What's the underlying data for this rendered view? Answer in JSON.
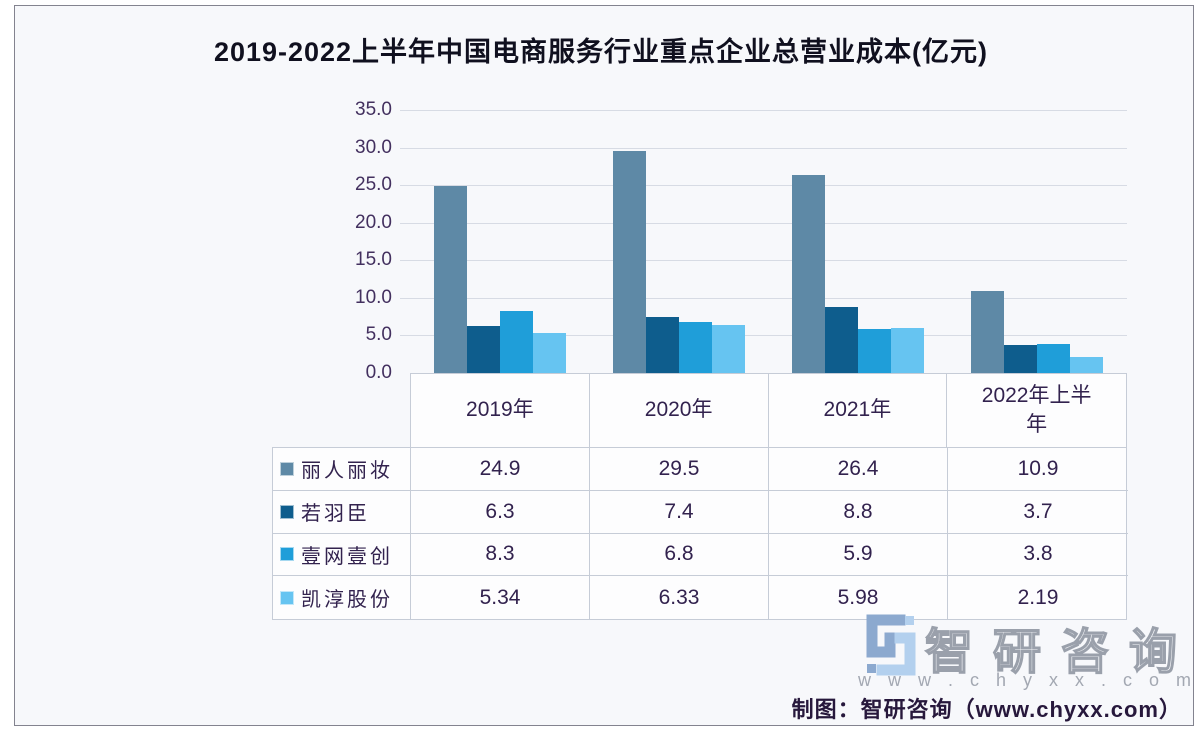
{
  "chart_data": {
    "type": "bar",
    "title": "2019-2022上半年中国电商服务行业重点企业总营业成本(亿元)",
    "unit": "亿元",
    "categories": [
      "2019年",
      "2020年",
      "2021年",
      "2022年上半年"
    ],
    "series": [
      {
        "name": "丽人丽妆",
        "color": "#5e89a6",
        "values": [
          24.9,
          29.5,
          26.4,
          10.9
        ],
        "display_values": [
          "24.9",
          "29.5",
          "26.4",
          "10.9"
        ]
      },
      {
        "name": "若羽臣",
        "color": "#0e5d8d",
        "values": [
          6.3,
          7.4,
          8.8,
          3.7
        ],
        "display_values": [
          "6.3",
          "7.4",
          "8.8",
          "3.7"
        ]
      },
      {
        "name": "壹网壹创",
        "color": "#1f9ed9",
        "values": [
          8.3,
          6.8,
          5.9,
          3.8
        ],
        "display_values": [
          "8.3",
          "6.8",
          "5.9",
          "3.8"
        ]
      },
      {
        "name": "凯淳股份",
        "color": "#66c4f1",
        "values": [
          5.34,
          6.33,
          5.98,
          2.19
        ],
        "display_values": [
          "5.34",
          "6.33",
          "5.98",
          "2.19"
        ]
      }
    ],
    "y_ticks": [
      "35.0",
      "30.0",
      "25.0",
      "20.0",
      "15.0",
      "10.0",
      "5.0",
      "0.0"
    ],
    "ylim": [
      0,
      35
    ],
    "grid": true,
    "legend_position": "table-left"
  },
  "watermark": {
    "brand": "智研咨询",
    "url_spaced": "w w w . c h y x x . c o m",
    "logo_color_left": "#8ca9cf",
    "logo_color_right": "#b3d0ee"
  },
  "footer": {
    "credit": "制图：智研咨询（www.chyxx.com）"
  }
}
